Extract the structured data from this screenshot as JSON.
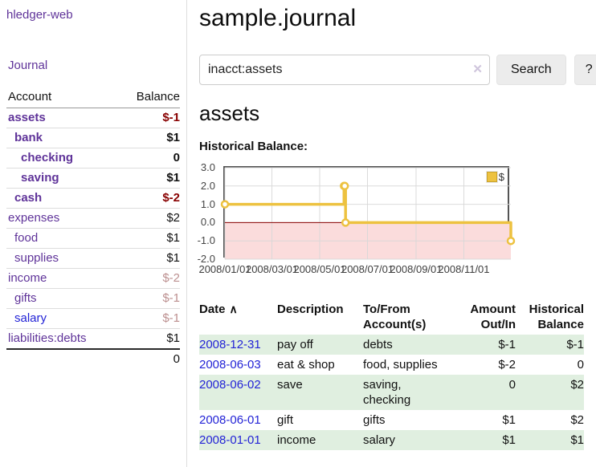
{
  "colors": {
    "purple_link": "#5f3399",
    "blue_link": "#2323d6",
    "negative": "#880000",
    "negative_muted": "#bc8f8f",
    "row_green": "#e0efe0",
    "line_gold": "#EDC240",
    "negative_region_fill": "#fbdcdc",
    "zero_line": "#8b0000",
    "gridline": "#d8d8d8",
    "chart_border": "#545454"
  },
  "sidebar": {
    "brand": "hledger-web",
    "nav_journal": "Journal",
    "accounts": {
      "header_account": "Account",
      "header_balance": "Balance",
      "rows": [
        {
          "name": "assets",
          "balance": "$-1",
          "indent": 1,
          "bold": true,
          "link_color": "purple",
          "balance_style": "neg"
        },
        {
          "name": "bank",
          "balance": "$1",
          "indent": 2,
          "bold": true,
          "link_color": "purple",
          "balance_style": "pos"
        },
        {
          "name": "checking",
          "balance": "0",
          "indent": 3,
          "bold": true,
          "link_color": "purple",
          "balance_style": "pos"
        },
        {
          "name": "saving",
          "balance": "$1",
          "indent": 3,
          "bold": true,
          "link_color": "purple",
          "balance_style": "pos"
        },
        {
          "name": "cash",
          "balance": "$-2",
          "indent": 2,
          "bold": true,
          "link_color": "purple",
          "balance_style": "neg"
        },
        {
          "name": "expenses",
          "balance": "$2",
          "indent": 1,
          "bold": false,
          "link_color": "purple",
          "balance_style": "pos"
        },
        {
          "name": "food",
          "balance": "$1",
          "indent": 2,
          "bold": false,
          "link_color": "purple",
          "balance_style": "pos"
        },
        {
          "name": "supplies",
          "balance": "$1",
          "indent": 2,
          "bold": false,
          "link_color": "purple",
          "balance_style": "pos"
        },
        {
          "name": "income",
          "balance": "$-2",
          "indent": 1,
          "bold": false,
          "link_color": "purple",
          "balance_style": "muted"
        },
        {
          "name": "gifts",
          "balance": "$-1",
          "indent": 2,
          "bold": false,
          "link_color": "purple",
          "balance_style": "muted"
        },
        {
          "name": "salary",
          "balance": "$-1",
          "indent": 2,
          "bold": false,
          "link_color": "blue",
          "balance_style": "muted"
        },
        {
          "name": "liabilities:debts",
          "balance": "$1",
          "indent": 1,
          "bold": false,
          "link_color": "purple",
          "balance_style": "pos"
        }
      ],
      "total": "0"
    }
  },
  "main": {
    "title": "sample.journal",
    "search": {
      "value": "inacct:assets",
      "clear_icon": "✕",
      "button_label": "Search",
      "help_label": "?"
    },
    "account_heading": "assets",
    "chart_label": "Historical Balance:",
    "register": {
      "headers": [
        "Date",
        "Description",
        "To/From Account(s)",
        "Amount Out/In",
        "Historical Balance"
      ],
      "sort_icon": "∧",
      "rows": [
        {
          "date": "2008-12-31",
          "description": "pay off",
          "accounts": "debts",
          "amount": "$-1",
          "amount_negative": true,
          "balance": "$-1",
          "balance_negative": true
        },
        {
          "date": "2008-06-03",
          "description": "eat & shop",
          "accounts": "food, supplies",
          "amount": "$-2",
          "amount_negative": true,
          "balance": "0",
          "balance_negative": false
        },
        {
          "date": "2008-06-02",
          "description": "save",
          "accounts": "saving, checking",
          "amount": "0",
          "amount_negative": false,
          "balance": "$2",
          "balance_negative": false
        },
        {
          "date": "2008-06-01",
          "description": "gift",
          "accounts": "gifts",
          "amount": "$1",
          "amount_negative": false,
          "balance": "$2",
          "balance_negative": false
        },
        {
          "date": "2008-01-01",
          "description": "income",
          "accounts": "salary",
          "amount": "$1",
          "amount_negative": false,
          "balance": "$1",
          "balance_negative": false
        }
      ]
    }
  },
  "chart_data": {
    "type": "line",
    "step": true,
    "title": "Historical Balance",
    "legend_label": "$",
    "legend_position": "top-right",
    "grid": true,
    "ylim": [
      -2.0,
      3.0
    ],
    "y_ticks": [
      "3.0",
      "2.0",
      "1.0",
      "0.0",
      "-1.0",
      "-2.0"
    ],
    "x_start": "2008-01-01",
    "x_end": "2008-12-31",
    "x_ticks": [
      {
        "date": "2008-01-01",
        "label": "2008/01/01"
      },
      {
        "date": "2008-03-01",
        "label": "2008/03/01"
      },
      {
        "date": "2008-05-01",
        "label": "2008/05/01"
      },
      {
        "date": "2008-07-01",
        "label": "2008/07/01"
      },
      {
        "date": "2008-09-01",
        "label": "2008/09/01"
      },
      {
        "date": "2008-11-01",
        "label": "2008/11/01"
      }
    ],
    "series": [
      {
        "name": "$",
        "points": [
          {
            "date": "2008-01-01",
            "value": 1
          },
          {
            "date": "2008-06-01",
            "value": 2
          },
          {
            "date": "2008-06-02",
            "value": 2
          },
          {
            "date": "2008-06-03",
            "value": 0
          },
          {
            "date": "2008-12-31",
            "value": -1
          }
        ]
      }
    ]
  }
}
